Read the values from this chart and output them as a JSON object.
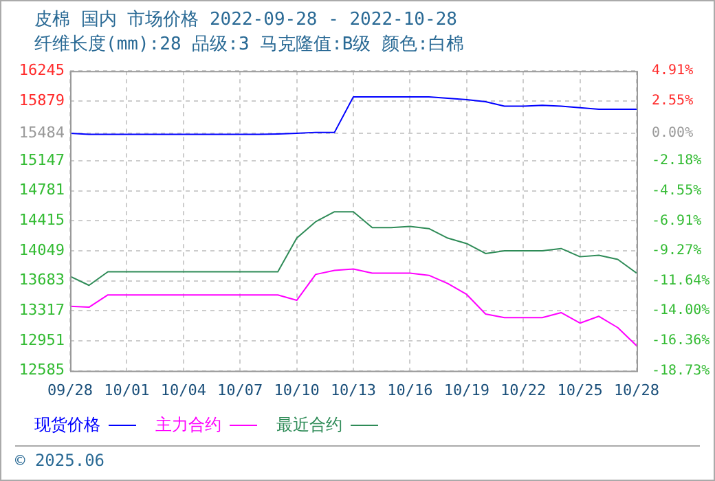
{
  "chart_data": {
    "type": "line",
    "title": "皮棉 国内 市场价格 2022-09-28 - 2022-10-28",
    "subtitle": "纤维长度(mm):28 品级:3 马克隆值:B级 颜色:白棉",
    "x": [
      "2022-09-28",
      "2022-09-29",
      "2022-09-30",
      "2022-10-01",
      "2022-10-02",
      "2022-10-03",
      "2022-10-04",
      "2022-10-05",
      "2022-10-06",
      "2022-10-07",
      "2022-10-08",
      "2022-10-09",
      "2022-10-10",
      "2022-10-11",
      "2022-10-12",
      "2022-10-13",
      "2022-10-14",
      "2022-10-15",
      "2022-10-16",
      "2022-10-17",
      "2022-10-18",
      "2022-10-19",
      "2022-10-20",
      "2022-10-21",
      "2022-10-22",
      "2022-10-23",
      "2022-10-24",
      "2022-10-25",
      "2022-10-26",
      "2022-10-27",
      "2022-10-28"
    ],
    "series": [
      {
        "name": "现货价格",
        "color": "#0000ff",
        "values": [
          15484,
          15470,
          15470,
          15470,
          15470,
          15470,
          15470,
          15470,
          15470,
          15470,
          15470,
          15475,
          15484,
          15495,
          15495,
          15929,
          15929,
          15929,
          15929,
          15929,
          15912,
          15895,
          15870,
          15815,
          15815,
          15826,
          15815,
          15795,
          15777,
          15777,
          15777
        ]
      },
      {
        "name": "主力合约",
        "color": "#ff00ff",
        "values": [
          13372,
          13361,
          13511,
          13511,
          13511,
          13511,
          13511,
          13511,
          13511,
          13511,
          13511,
          13511,
          13445,
          13761,
          13811,
          13827,
          13777,
          13777,
          13777,
          13750,
          13650,
          13517,
          13278,
          13234,
          13234,
          13234,
          13295,
          13167,
          13250,
          13112,
          12890
        ]
      },
      {
        "name": "最近合约",
        "color": "#2e8b57",
        "values": [
          13738,
          13628,
          13794,
          13794,
          13794,
          13794,
          13794,
          13794,
          13794,
          13794,
          13794,
          13794,
          14204,
          14404,
          14526,
          14526,
          14332,
          14332,
          14348,
          14320,
          14204,
          14138,
          14016,
          14049,
          14049,
          14049,
          14077,
          13977,
          13994,
          13944,
          13777
        ]
      }
    ],
    "xlim": [
      "2022-09-28",
      "2022-10-28"
    ],
    "xticks": [
      {
        "value": "2022-09-28",
        "label": "09/28"
      },
      {
        "value": "2022-10-01",
        "label": "10/01"
      },
      {
        "value": "2022-10-04",
        "label": "10/04"
      },
      {
        "value": "2022-10-07",
        "label": "10/07"
      },
      {
        "value": "2022-10-10",
        "label": "10/10"
      },
      {
        "value": "2022-10-13",
        "label": "10/13"
      },
      {
        "value": "2022-10-16",
        "label": "10/16"
      },
      {
        "value": "2022-10-19",
        "label": "10/19"
      },
      {
        "value": "2022-10-22",
        "label": "10/22"
      },
      {
        "value": "2022-10-25",
        "label": "10/25"
      },
      {
        "value": "2022-10-28",
        "label": "10/28"
      }
    ],
    "ylim": [
      12585,
      16245
    ],
    "yticks": [
      12585,
      12951,
      13317,
      13683,
      14049,
      14415,
      14781,
      15147,
      15484,
      15879,
      16245
    ],
    "y2lim": [
      -18.73,
      4.91
    ],
    "y2ticks": [
      {
        "value": -18.73,
        "label": "-18.73%"
      },
      {
        "value": -16.36,
        "label": "-16.36%"
      },
      {
        "value": -14.0,
        "label": "-14.00%"
      },
      {
        "value": -11.64,
        "label": "-11.64%"
      },
      {
        "value": -9.27,
        "label": "-9.27%"
      },
      {
        "value": -6.91,
        "label": "-6.91%"
      },
      {
        "value": -4.55,
        "label": "-4.55%"
      },
      {
        "value": -2.18,
        "label": "-2.18%"
      },
      {
        "value": 0,
        "label": "0.00%"
      },
      {
        "value": 2.55,
        "label": "2.55%"
      },
      {
        "value": 4.91,
        "label": "4.91%"
      }
    ],
    "grid": true,
    "legend": "bottom",
    "marker": "none",
    "line_style": "solid",
    "annotations": [
      "© 2025.06"
    ]
  }
}
